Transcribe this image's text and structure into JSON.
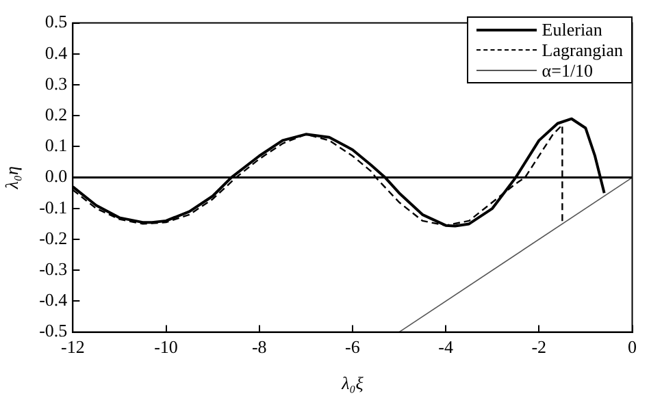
{
  "chart_data": {
    "type": "line",
    "xlabel": "λ₀ξ",
    "ylabel": "λ₀η",
    "xlim": [
      -12,
      0
    ],
    "ylim": [
      -0.5,
      0.5
    ],
    "xticks": [
      -12,
      -10,
      -8,
      -6,
      -4,
      -2,
      0
    ],
    "yticks": [
      {
        "value": -0.5,
        "label": "-0.5"
      },
      {
        "value": -0.4,
        "label": "-0.4"
      },
      {
        "value": -0.3,
        "label": "-0.3"
      },
      {
        "value": -0.2,
        "label": "-0.2"
      },
      {
        "value": -0.1,
        "label": "-0.1"
      },
      {
        "value": 0,
        "label": "0.0"
      },
      {
        "value": 0.1,
        "label": "0.1"
      },
      {
        "value": 0.2,
        "label": "0.2"
      },
      {
        "value": 0.3,
        "label": "0.3"
      },
      {
        "value": 0.4,
        "label": "0.4"
      },
      {
        "value": 0.5,
        "label": "0.5"
      }
    ],
    "grid": false,
    "legend": "top right",
    "marker": "none",
    "ref_lines": [
      {
        "axis": "y",
        "value": 0,
        "color": "#000000"
      }
    ],
    "series": [
      {
        "name": "Eulerian",
        "color": "#000000",
        "line_style": "solid",
        "x": [
          -12,
          -11.5,
          -11,
          -10.5,
          -10.3,
          -10,
          -9.5,
          -9,
          -8.6,
          -8,
          -7.5,
          -7,
          -6.5,
          -6,
          -5.6,
          -5.3,
          -5,
          -4.5,
          -4,
          -3.8,
          -3.5,
          -3,
          -2.5,
          -2,
          -1.6,
          -1.3,
          -1,
          -0.8,
          -0.6
        ],
        "values": [
          -0.03,
          -0.09,
          -0.13,
          -0.145,
          -0.145,
          -0.14,
          -0.11,
          -0.06,
          0,
          0.07,
          0.12,
          0.14,
          0.13,
          0.09,
          0.04,
          0,
          -0.05,
          -0.12,
          -0.155,
          -0.157,
          -0.15,
          -0.1,
          0,
          0.12,
          0.175,
          0.19,
          0.16,
          0.07,
          -0.05
        ]
      },
      {
        "name": "Lagrangian",
        "color": "#000000",
        "line_style": "dashed",
        "x": [
          -12,
          -11.5,
          -11,
          -10.5,
          -10,
          -9.5,
          -9,
          -8.5,
          -8,
          -7.5,
          -7,
          -6.5,
          -6,
          -5.6,
          -5.5,
          -5,
          -4.5,
          -4,
          -3.5,
          -3,
          -2.5,
          -2.3,
          -2,
          -1.7,
          -1.5,
          -1.5
        ],
        "values": [
          -0.04,
          -0.1,
          -0.135,
          -0.15,
          -0.145,
          -0.12,
          -0.07,
          0,
          0.06,
          0.11,
          0.14,
          0.12,
          0.07,
          0.02,
          0,
          -0.08,
          -0.14,
          -0.155,
          -0.14,
          -0.08,
          -0.02,
          0,
          0.07,
          0.14,
          0.17,
          -0.15
        ]
      },
      {
        "name": "α=1/10",
        "color": "#555555",
        "line_style": "solid",
        "x": [
          -5,
          0
        ],
        "values": [
          -0.5,
          0
        ]
      }
    ]
  }
}
